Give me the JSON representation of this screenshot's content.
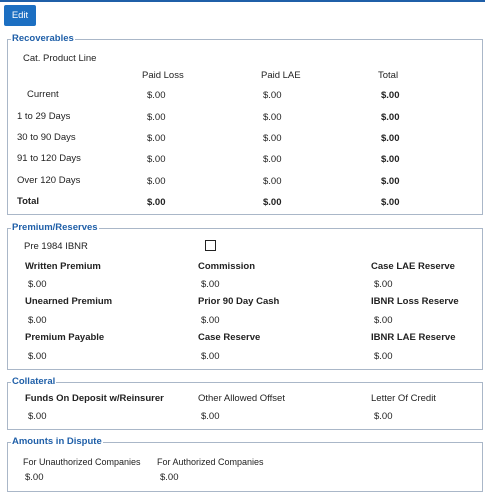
{
  "toolbar": {
    "edit_label": "Edit"
  },
  "recoverables": {
    "legend": "Recoverables",
    "product_line_label": "Cat. Product Line",
    "columns": [
      "Paid Loss",
      "Paid LAE",
      "Total"
    ],
    "rows": [
      {
        "label": "Current",
        "paid_loss": "$.00",
        "paid_lae": "$.00",
        "total": "$.00"
      },
      {
        "label": "1 to 29 Days",
        "paid_loss": "$.00",
        "paid_lae": "$.00",
        "total": "$.00"
      },
      {
        "label": "30 to 90 Days",
        "paid_loss": "$.00",
        "paid_lae": "$.00",
        "total": "$.00"
      },
      {
        "label": "91 to 120 Days",
        "paid_loss": "$.00",
        "paid_lae": "$.00",
        "total": "$.00"
      },
      {
        "label": "Over 120 Days",
        "paid_loss": "$.00",
        "paid_lae": "$.00",
        "total": "$.00"
      },
      {
        "label": "Total",
        "paid_loss": "$.00",
        "paid_lae": "$.00",
        "total": "$.00"
      }
    ]
  },
  "premium_reserves": {
    "legend": "Premium/Reserves",
    "pre1984_label": "Pre 1984 IBNR",
    "pre1984_checked": false,
    "fields": [
      {
        "label": "Written Premium",
        "value": "$.00"
      },
      {
        "label": "Commission",
        "value": "$.00"
      },
      {
        "label": "Case LAE Reserve",
        "value": "$.00"
      },
      {
        "label": "Unearned Premium",
        "value": "$.00"
      },
      {
        "label": "Prior 90 Day Cash",
        "value": "$.00"
      },
      {
        "label": "IBNR Loss Reserve",
        "value": "$.00"
      },
      {
        "label": "Premium Payable",
        "value": "$.00"
      },
      {
        "label": "Case Reserve",
        "value": "$.00"
      },
      {
        "label": "IBNR LAE Reserve",
        "value": "$.00"
      }
    ]
  },
  "collateral": {
    "legend": "Collateral",
    "fields": [
      {
        "label": "Funds On Deposit w/Reinsurer",
        "value": "$.00"
      },
      {
        "label": "Other Allowed Offset",
        "value": "$.00"
      },
      {
        "label": "Letter Of Credit",
        "value": "$.00"
      }
    ]
  },
  "amounts_in_dispute": {
    "legend": "Amounts in Dispute",
    "fields": [
      {
        "label": "For Unauthorized Companies",
        "value": "$.00"
      },
      {
        "label": "For Authorized Companies",
        "value": "$.00"
      }
    ]
  }
}
